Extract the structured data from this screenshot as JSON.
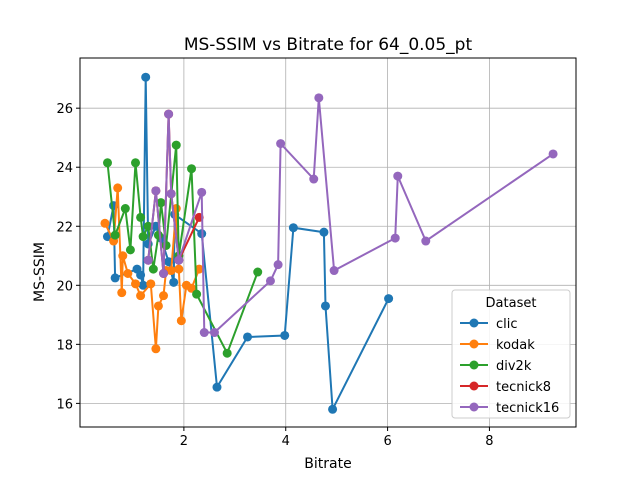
{
  "chart_data": {
    "type": "line",
    "title": "MS-SSIM vs Bitrate for 64_0.05_pt",
    "xlabel": "Bitrate",
    "ylabel": "MS-SSIM",
    "xlim": [
      -0.04,
      9.7
    ],
    "ylim": [
      15.2,
      27.7
    ],
    "xticks": [
      2,
      4,
      6,
      8
    ],
    "yticks": [
      16,
      18,
      20,
      22,
      24,
      26
    ],
    "grid": true,
    "legend": {
      "title": "Dataset",
      "placement": "lower-right"
    },
    "series": [
      {
        "name": "clic",
        "color": "#1f77b4",
        "points": [
          [
            0.5,
            21.65
          ],
          [
            0.62,
            22.7
          ],
          [
            0.65,
            20.25
          ],
          [
            1.08,
            20.55
          ],
          [
            1.15,
            20.35
          ],
          [
            1.2,
            20.0
          ],
          [
            1.25,
            27.05
          ],
          [
            1.3,
            21.4
          ],
          [
            1.45,
            22.0
          ],
          [
            1.55,
            21.6
          ],
          [
            1.7,
            20.8
          ],
          [
            1.8,
            20.1
          ],
          [
            1.82,
            22.4
          ],
          [
            2.35,
            21.75
          ],
          [
            2.65,
            16.55
          ],
          [
            3.25,
            18.25
          ],
          [
            3.98,
            18.3
          ],
          [
            4.15,
            21.95
          ],
          [
            4.75,
            21.8
          ],
          [
            4.78,
            19.3
          ],
          [
            4.92,
            15.8
          ],
          [
            6.02,
            19.55
          ]
        ]
      },
      {
        "name": "kodak",
        "color": "#ff7f0e",
        "points": [
          [
            0.45,
            22.1
          ],
          [
            0.62,
            21.5
          ],
          [
            0.7,
            23.3
          ],
          [
            0.78,
            19.75
          ],
          [
            0.8,
            21.0
          ],
          [
            0.9,
            20.4
          ],
          [
            1.05,
            20.05
          ],
          [
            1.15,
            19.65
          ],
          [
            1.35,
            20.05
          ],
          [
            1.45,
            17.85
          ],
          [
            1.5,
            19.3
          ],
          [
            1.6,
            19.65
          ],
          [
            1.65,
            20.5
          ],
          [
            1.75,
            20.5
          ],
          [
            1.85,
            22.6
          ],
          [
            1.9,
            20.55
          ],
          [
            1.95,
            18.8
          ],
          [
            2.05,
            20.0
          ],
          [
            2.15,
            19.9
          ],
          [
            2.3,
            20.55
          ]
        ]
      },
      {
        "name": "div2k",
        "color": "#2ca02c",
        "points": [
          [
            0.5,
            24.15
          ],
          [
            0.65,
            21.7
          ],
          [
            0.85,
            22.6
          ],
          [
            0.95,
            21.2
          ],
          [
            1.05,
            24.15
          ],
          [
            1.15,
            22.3
          ],
          [
            1.2,
            21.65
          ],
          [
            1.3,
            22.0
          ],
          [
            1.4,
            20.55
          ],
          [
            1.5,
            21.7
          ],
          [
            1.55,
            22.8
          ],
          [
            1.65,
            21.35
          ],
          [
            1.85,
            24.75
          ],
          [
            1.9,
            21.0
          ],
          [
            2.15,
            23.95
          ],
          [
            2.25,
            19.7
          ],
          [
            2.85,
            17.7
          ],
          [
            3.45,
            20.45
          ]
        ]
      },
      {
        "name": "tecnick8",
        "color": "#d62728",
        "points": [
          [
            1.3,
            20.85
          ],
          [
            1.45,
            23.2
          ],
          [
            1.6,
            20.4
          ],
          [
            1.7,
            25.8
          ],
          [
            1.75,
            23.1
          ],
          [
            1.9,
            20.85
          ],
          [
            2.3,
            22.3
          ]
        ]
      },
      {
        "name": "tecnick16",
        "color": "#9467bd",
        "points": [
          [
            1.3,
            20.85
          ],
          [
            1.45,
            23.2
          ],
          [
            1.6,
            20.4
          ],
          [
            1.7,
            25.8
          ],
          [
            1.75,
            23.1
          ],
          [
            1.9,
            20.85
          ],
          [
            2.35,
            23.15
          ],
          [
            2.4,
            18.4
          ],
          [
            2.6,
            18.4
          ],
          [
            3.7,
            20.15
          ],
          [
            3.85,
            20.7
          ],
          [
            3.9,
            24.8
          ],
          [
            4.55,
            23.6
          ],
          [
            4.65,
            26.35
          ],
          [
            4.95,
            20.5
          ],
          [
            6.15,
            21.6
          ],
          [
            6.2,
            23.7
          ],
          [
            6.75,
            21.5
          ],
          [
            9.25,
            24.45
          ]
        ]
      }
    ]
  }
}
